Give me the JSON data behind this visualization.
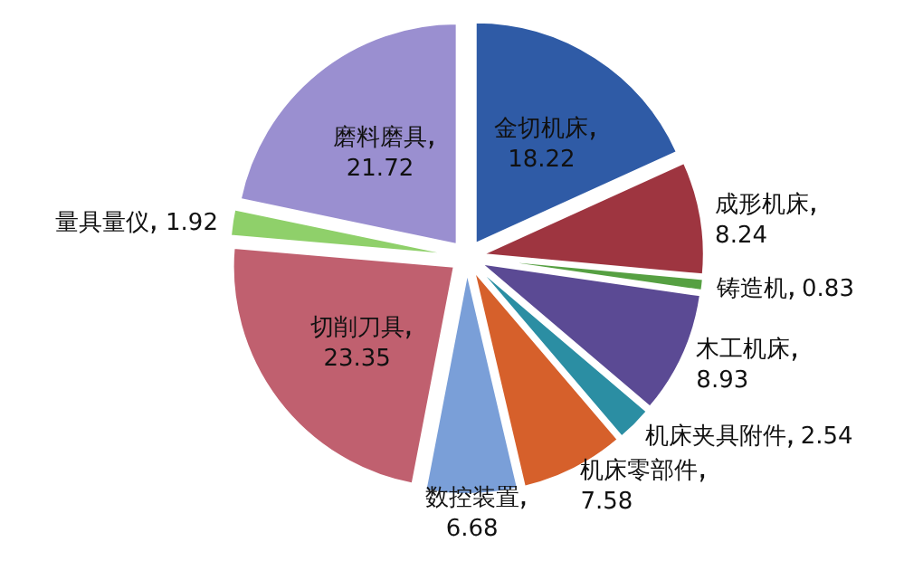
{
  "chart_data": {
    "type": "pie",
    "categories": [
      "金切机床",
      "成形机床",
      "铸造机",
      "木工机床",
      "机床夹具附件",
      "机床零部件",
      "数控装置",
      "切削刀具",
      "量具量仪",
      "磨料磨具"
    ],
    "values": [
      18.22,
      8.24,
      0.83,
      8.93,
      2.54,
      7.58,
      6.68,
      23.35,
      1.92,
      21.72
    ],
    "colors": [
      "#2f5ba6",
      "#9e3540",
      "#56a042",
      "#5b4a94",
      "#2b8ea3",
      "#d6602b",
      "#7a9fd8",
      "#c0606f",
      "#8fd06a",
      "#9a8fd0"
    ],
    "data_labels": true
  }
}
